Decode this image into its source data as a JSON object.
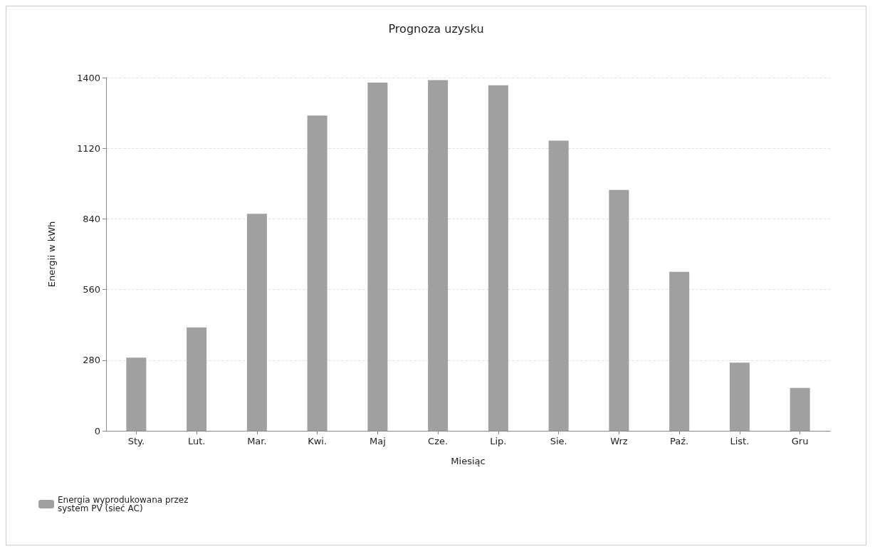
{
  "chart_data": {
    "type": "bar",
    "title": "Prognoza uzysku",
    "xlabel": "Miesiąc",
    "ylabel": "Energii w kWh",
    "categories": [
      "Sty.",
      "Lut.",
      "Mar.",
      "Kwi.",
      "Maj",
      "Cze.",
      "Lip.",
      "Sie.",
      "Wrz",
      "Paź.",
      "List.",
      "Gru"
    ],
    "series": [
      {
        "name": "Energia wyprodukowana przez system PV (sieć AC)",
        "color": "#a0a0a0",
        "values": [
          290,
          410,
          860,
          1250,
          1380,
          1390,
          1370,
          1150,
          955,
          630,
          270,
          170
        ]
      }
    ],
    "ylim": [
      0,
      1400
    ],
    "yticks": [
      0,
      280,
      560,
      840,
      1120,
      1400
    ],
    "grid": "y",
    "legend": "bottom left"
  }
}
